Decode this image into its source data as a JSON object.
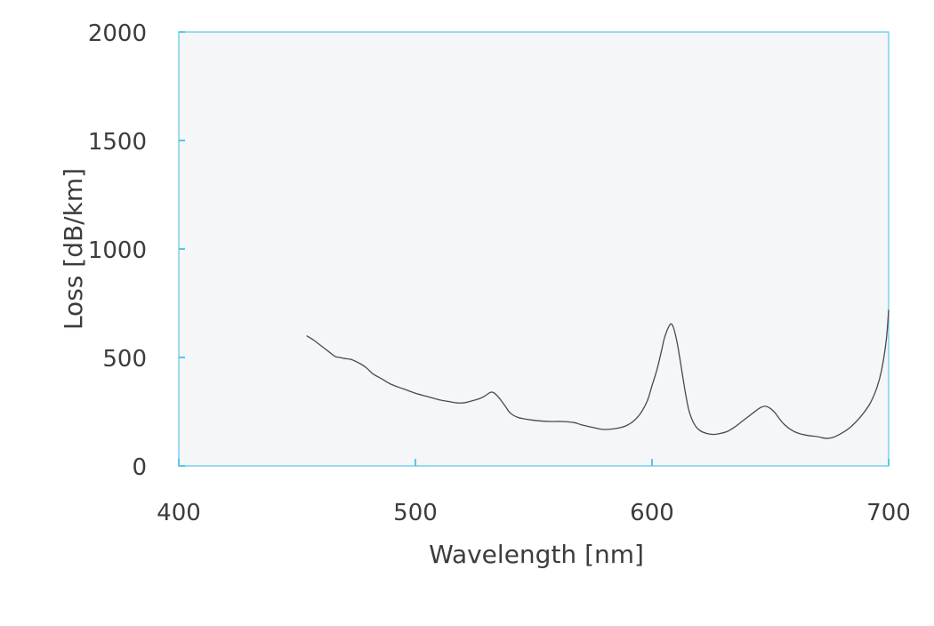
{
  "chart_data": {
    "type": "line",
    "title": "",
    "xlabel": "Wavelength [nm]",
    "ylabel": "Loss [dB/km]",
    "xlim": [
      400,
      700
    ],
    "ylim": [
      0,
      2000
    ],
    "xticks": [
      400,
      500,
      600,
      700
    ],
    "yticks": [
      0,
      500,
      1000,
      1500,
      2000
    ],
    "xtick_labels": [
      "400",
      "500",
      "600",
      "700"
    ],
    "ytick_labels": [
      "0",
      "500",
      "1000",
      "1500",
      "2000"
    ],
    "grid": false,
    "legend": "none",
    "colors": {
      "plot_background": "#f4f6f7",
      "frame": "#5bc4ec",
      "line": "#4a4a4a",
      "text": "#3c3c3c"
    },
    "series": [
      {
        "x": [
          454,
          457,
          460,
          463,
          466,
          468,
          470,
          473,
          476,
          479,
          482,
          486,
          490,
          495,
          500,
          505,
          510,
          515,
          518,
          521,
          524,
          527,
          529,
          531,
          532,
          533,
          534,
          536,
          538,
          540,
          543,
          547,
          552,
          557,
          562,
          567,
          570,
          574,
          578,
          580,
          583,
          586,
          589,
          592,
          595,
          598,
          600,
          602,
          604,
          605,
          606,
          607,
          608,
          609,
          610,
          611,
          612,
          613,
          614,
          615,
          616,
          618,
          620,
          623,
          626,
          629,
          632,
          635,
          638,
          641,
          644,
          646,
          648,
          650,
          652,
          654,
          656,
          659,
          662,
          666,
          670,
          673,
          676,
          680,
          684,
          688,
          692,
          695,
          697,
          699,
          700
        ],
        "y": [
          600,
          580,
          555,
          530,
          505,
          500,
          495,
          490,
          475,
          455,
          425,
          400,
          375,
          355,
          335,
          320,
          305,
          295,
          290,
          292,
          300,
          310,
          320,
          335,
          340,
          338,
          330,
          305,
          275,
          245,
          225,
          215,
          208,
          205,
          205,
          200,
          190,
          180,
          170,
          168,
          170,
          175,
          185,
          205,
          240,
          300,
          370,
          440,
          530,
          580,
          615,
          640,
          655,
          640,
          600,
          545,
          480,
          410,
          345,
          285,
          240,
          190,
          165,
          150,
          145,
          150,
          160,
          180,
          205,
          230,
          255,
          270,
          275,
          265,
          245,
          215,
          190,
          165,
          150,
          140,
          135,
          128,
          130,
          150,
          180,
          225,
          285,
          360,
          440,
          580,
          720
        ]
      }
    ]
  }
}
